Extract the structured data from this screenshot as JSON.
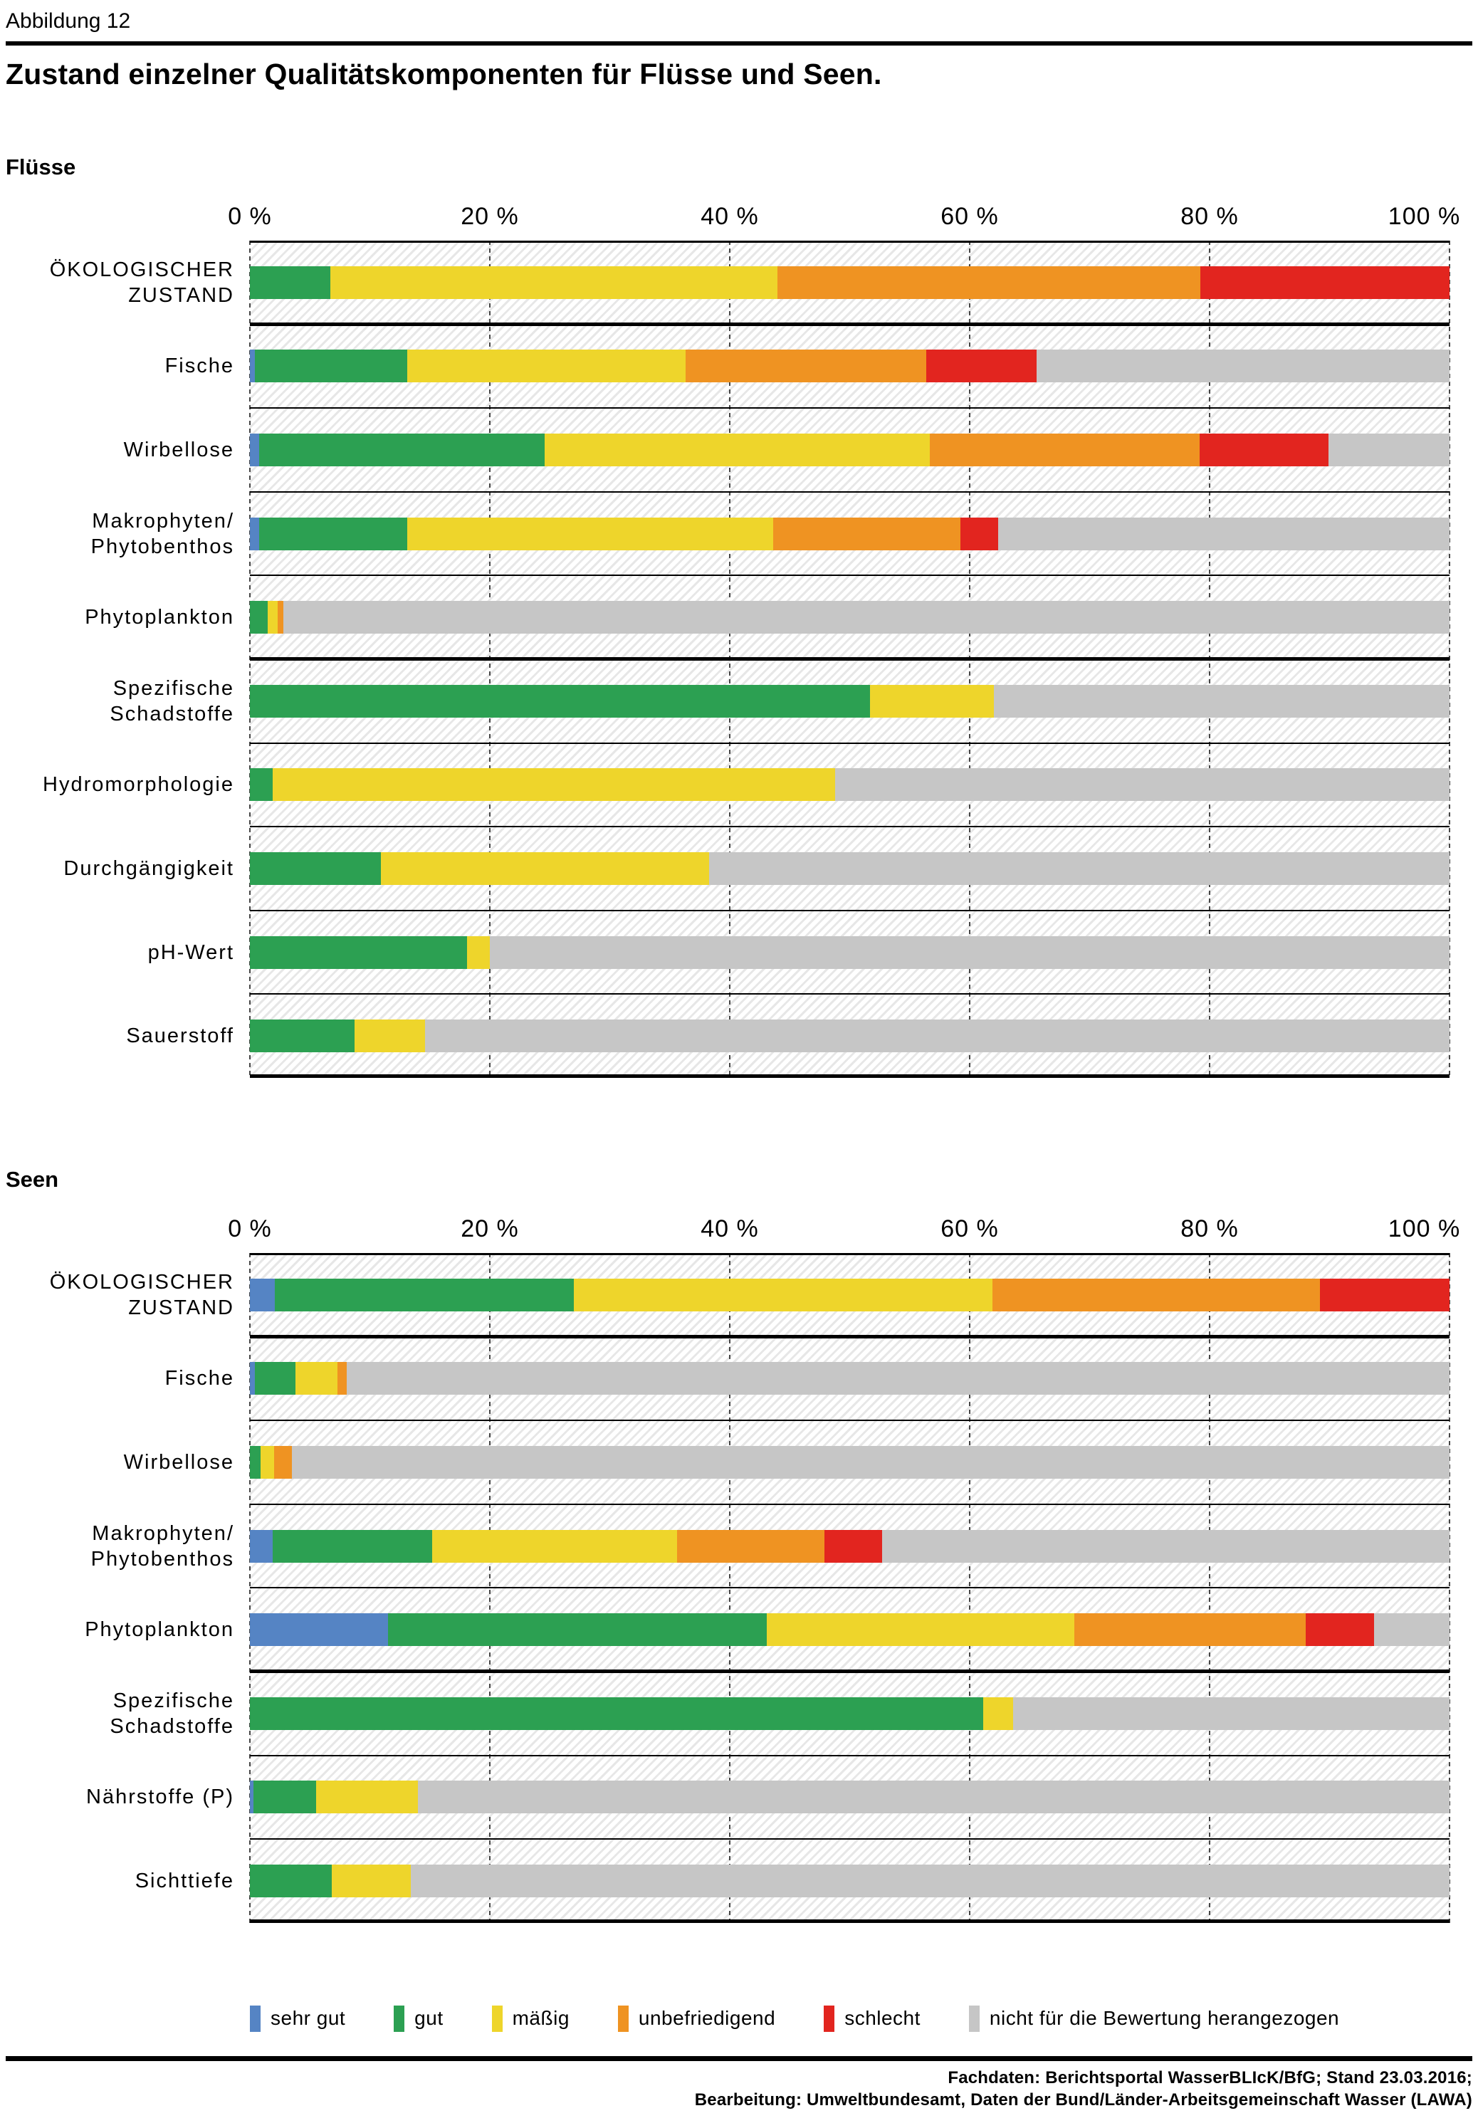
{
  "header": {
    "figure_label": "Abbildung 12",
    "title": "Zustand einzelner Qualitätskomponenten für Flüsse und Seen."
  },
  "axis": {
    "ticks": [
      "0 %",
      "20 %",
      "40 %",
      "60 %",
      "80 %",
      "100 %"
    ]
  },
  "classes": {
    "sehr_gut": {
      "label": "sehr gut",
      "key": "sehr-gut",
      "color": "#5584c4"
    },
    "gut": {
      "label": "gut",
      "key": "gut",
      "color": "#2ca052"
    },
    "maessig": {
      "label": "mäßig",
      "key": "maessig",
      "color": "#eed52b"
    },
    "unbefriedigend": {
      "label": "unbefriedigend",
      "key": "unbefriedigend",
      "color": "#ef9322"
    },
    "schlecht": {
      "label": "schlecht",
      "key": "schlecht",
      "color": "#e2251f"
    },
    "nicht_bewertet": {
      "label": "nicht für die Bewertung herangezogen",
      "key": "nicht-bewertet",
      "color": "#c6c6c6"
    }
  },
  "chart_data": [
    {
      "type": "bar",
      "orientation": "horizontal-stacked",
      "title": "Flüsse",
      "xlabel": "",
      "ylabel": "",
      "xlim": [
        0,
        100
      ],
      "x_ticks": [
        "0 %",
        "20 %",
        "40 %",
        "60 %",
        "80 %",
        "100 %"
      ],
      "grid": "vertical dotted lines every 20%",
      "units": "percent",
      "group_separator_after_rows": [
        0,
        4
      ],
      "categories": [
        "ÖKOLOGISCHER\nZUSTAND",
        "Fische",
        "Wirbellose",
        "Makrophyten/\nPhytobenthos",
        "Phytoplankton",
        "Spezifische\nSchadstoffe",
        "Hydromorphologie",
        "Durchgängigkeit",
        "pH-Wert",
        "Sauerstoff"
      ],
      "series": [
        {
          "name": "sehr gut",
          "key": "sehr-gut",
          "color": "#5584c4",
          "values": [
            0,
            0.4,
            0.8,
            0.8,
            0,
            0,
            0,
            0,
            0,
            0
          ]
        },
        {
          "name": "gut",
          "key": "gut",
          "color": "#2ca052",
          "values": [
            6.7,
            12.7,
            23.8,
            12.3,
            1.5,
            51.7,
            1.9,
            10.9,
            18.1,
            8.7
          ]
        },
        {
          "name": "mäßig",
          "key": "maessig",
          "color": "#eed52b",
          "values": [
            37.3,
            23.2,
            32.1,
            30.5,
            0.8,
            10.3,
            46.9,
            27.4,
            1.9,
            5.9
          ]
        },
        {
          "name": "unbefriedigend",
          "key": "unbefriedigend",
          "color": "#ef9322",
          "values": [
            35.2,
            20.1,
            22.5,
            15.6,
            0.5,
            0,
            0,
            0,
            0,
            0
          ]
        },
        {
          "name": "schlecht",
          "key": "schlecht",
          "color": "#e2251f",
          "values": [
            20.8,
            9.2,
            10.7,
            3.2,
            0,
            0,
            0,
            0,
            0,
            0
          ]
        },
        {
          "name": "nicht für die Bewertung herangezogen",
          "key": "nicht-bewertet",
          "color": "#c6c6c6",
          "values": [
            0,
            34.4,
            10.1,
            37.6,
            97.2,
            38.0,
            51.2,
            61.7,
            80.0,
            85.4
          ]
        }
      ]
    },
    {
      "type": "bar",
      "orientation": "horizontal-stacked",
      "title": "Seen",
      "xlabel": "",
      "ylabel": "",
      "xlim": [
        0,
        100
      ],
      "x_ticks": [
        "0 %",
        "20 %",
        "40 %",
        "60 %",
        "80 %",
        "100 %"
      ],
      "grid": "vertical dotted lines every 20%",
      "units": "percent",
      "group_separator_after_rows": [
        0,
        4
      ],
      "categories": [
        "ÖKOLOGISCHER\nZUSTAND",
        "Fische",
        "Wirbellose",
        "Makrophyten/\nPhytobenthos",
        "Phytoplankton",
        "Spezifische\nSchadstoffe",
        "Nährstoffe (P)",
        "Sichttiefe"
      ],
      "series": [
        {
          "name": "sehr gut",
          "key": "sehr-gut",
          "color": "#5584c4",
          "values": [
            2.1,
            0.4,
            0,
            1.9,
            11.5,
            0,
            0.3,
            0
          ]
        },
        {
          "name": "gut",
          "key": "gut",
          "color": "#2ca052",
          "values": [
            24.9,
            3.4,
            0.9,
            13.3,
            31.6,
            61.1,
            5.2,
            6.8
          ]
        },
        {
          "name": "mäßig",
          "key": "maessig",
          "color": "#eed52b",
          "values": [
            34.9,
            3.5,
            1.1,
            20.4,
            25.6,
            2.5,
            8.5,
            6.6
          ]
        },
        {
          "name": "unbefriedigend",
          "key": "unbefriedigend",
          "color": "#ef9322",
          "values": [
            27.3,
            0.8,
            1.5,
            12.3,
            19.3,
            0,
            0,
            0
          ]
        },
        {
          "name": "schlecht",
          "key": "schlecht",
          "color": "#e2251f",
          "values": [
            10.8,
            0,
            0,
            4.8,
            5.7,
            0,
            0,
            0
          ]
        },
        {
          "name": "nicht für die Bewertung herangezogen",
          "key": "nicht-bewertet",
          "color": "#c6c6c6",
          "values": [
            0,
            91.9,
            96.5,
            47.3,
            6.3,
            36.4,
            86.0,
            86.6
          ]
        }
      ]
    }
  ],
  "legend": {
    "items": [
      {
        "label": "sehr gut",
        "key": "sehr-gut",
        "color": "#5584c4"
      },
      {
        "label": "gut",
        "key": "gut",
        "color": "#2ca052"
      },
      {
        "label": "mäßig",
        "key": "maessig",
        "color": "#eed52b"
      },
      {
        "label": "unbefriedigend",
        "key": "unbefriedigend",
        "color": "#ef9322"
      },
      {
        "label": "schlecht",
        "key": "schlecht",
        "color": "#e2251f"
      },
      {
        "label": "nicht für die Bewertung herangezogen",
        "key": "nicht-bewertet",
        "color": "#c6c6c6"
      }
    ]
  },
  "footer": {
    "line1": "Fachdaten: Berichtsportal WasserBLIcK/BfG; Stand 23.03.2016;",
    "line2": "Bearbeitung: Umweltbundesamt, Daten der Bund/Länder-Arbeitsgemeinschaft Wasser (LAWA)"
  }
}
